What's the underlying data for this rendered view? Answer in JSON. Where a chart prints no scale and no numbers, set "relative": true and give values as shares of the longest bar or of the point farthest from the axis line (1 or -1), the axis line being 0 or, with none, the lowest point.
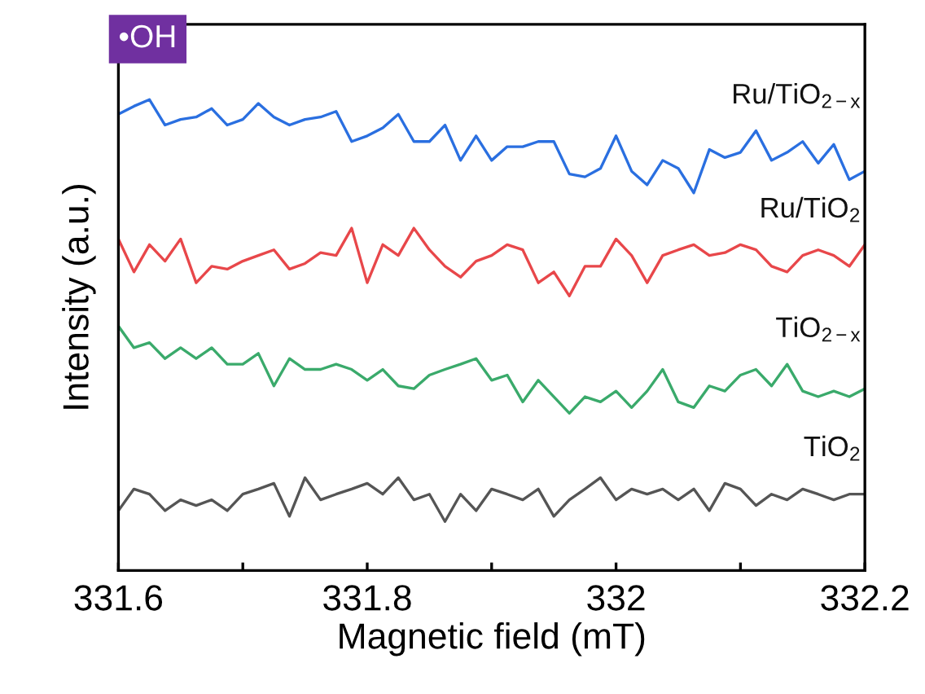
{
  "chart_data": {
    "type": "line",
    "relative": true,
    "xlabel": "Magnetic field (mT)",
    "ylabel": "Intensity (a.u.)",
    "annotations": [
      "•OH"
    ],
    "xlim": [
      331.6,
      332.2
    ],
    "xticks": [
      331.6,
      {
        "value": 331.7,
        "label": null
      },
      331.8,
      {
        "value": 331.9,
        "label": null
      },
      332,
      {
        "value": 332.1,
        "label": null
      },
      332.2
    ],
    "x": [
      331.6,
      331.6125,
      331.625,
      331.6375,
      331.65,
      331.6625,
      331.675,
      331.6875,
      331.7,
      331.7125,
      331.725,
      331.7375,
      331.75,
      331.7625,
      331.775,
      331.7875,
      331.8,
      331.8125,
      331.825,
      331.8375,
      331.85,
      331.8625,
      331.875,
      331.8875,
      331.9,
      331.9125,
      331.925,
      331.9375,
      331.95,
      331.9625,
      331.975,
      331.9875,
      332.0,
      332.0125,
      332.025,
      332.0375,
      332.05,
      332.0625,
      332.075,
      332.0875,
      332.1,
      332.1125,
      332.125,
      332.1375,
      332.15,
      332.1625,
      332.175,
      332.1875,
      332.2
    ],
    "series": [
      {
        "name": "Ru/TiO$_{2−x}$",
        "color": "#2a6fe0",
        "values": [
          0.969,
          0.986,
          1,
          0.946,
          0.958,
          0.963,
          0.981,
          0.946,
          0.958,
          0.992,
          0.963,
          0.946,
          0.958,
          0.963,
          0.975,
          0.911,
          0.923,
          0.94,
          0.969,
          0.911,
          0.911,
          0.946,
          0.871,
          0.923,
          0.871,
          0.9,
          0.9,
          0.911,
          0.911,
          0.842,
          0.836,
          0.854,
          0.923,
          0.848,
          0.819,
          0.871,
          0.854,
          0.802,
          0.894,
          0.877,
          0.888,
          0.934,
          0.871,
          0.888,
          0.911,
          0.865,
          0.905,
          0.83,
          0.848
        ]
      },
      {
        "name": "Ru/TiO$_{2}$",
        "color": "#e8474a",
        "values": [
          0.704,
          0.634,
          0.692,
          0.657,
          0.704,
          0.611,
          0.646,
          0.64,
          0.657,
          0.669,
          0.681,
          0.64,
          0.652,
          0.675,
          0.669,
          0.727,
          0.611,
          0.692,
          0.669,
          0.727,
          0.681,
          0.646,
          0.623,
          0.657,
          0.669,
          0.692,
          0.681,
          0.611,
          0.634,
          0.583,
          0.646,
          0.646,
          0.704,
          0.669,
          0.611,
          0.669,
          0.681,
          0.692,
          0.669,
          0.675,
          0.692,
          0.681,
          0.646,
          0.634,
          0.669,
          0.681,
          0.669,
          0.646,
          0.692
        ]
      },
      {
        "name": "TiO$_{2−x}$",
        "color": "#3aaa6b",
        "values": [
          0.519,
          0.473,
          0.484,
          0.45,
          0.473,
          0.45,
          0.473,
          0.438,
          0.438,
          0.461,
          0.392,
          0.45,
          0.427,
          0.427,
          0.438,
          0.427,
          0.404,
          0.427,
          0.392,
          0.386,
          0.415,
          0.427,
          0.438,
          0.45,
          0.404,
          0.415,
          0.358,
          0.404,
          0.369,
          0.334,
          0.369,
          0.358,
          0.381,
          0.346,
          0.381,
          0.427,
          0.358,
          0.346,
          0.392,
          0.381,
          0.415,
          0.427,
          0.392,
          0.438,
          0.381,
          0.369,
          0.381,
          0.369,
          0.386
        ]
      },
      {
        "name": "TiO$_{2}$",
        "color": "#555555",
        "values": [
          0.127,
          0.173,
          0.162,
          0.127,
          0.15,
          0.138,
          0.15,
          0.127,
          0.162,
          0.173,
          0.185,
          0.115,
          0.197,
          0.15,
          0.162,
          0.173,
          0.185,
          0.162,
          0.197,
          0.15,
          0.162,
          0.104,
          0.162,
          0.127,
          0.173,
          0.162,
          0.15,
          0.173,
          0.115,
          0.15,
          0.173,
          0.197,
          0.15,
          0.173,
          0.162,
          0.173,
          0.15,
          0.173,
          0.127,
          0.185,
          0.173,
          0.138,
          0.162,
          0.15,
          0.173,
          0.162,
          0.15,
          0.162,
          0.162
        ]
      }
    ]
  }
}
